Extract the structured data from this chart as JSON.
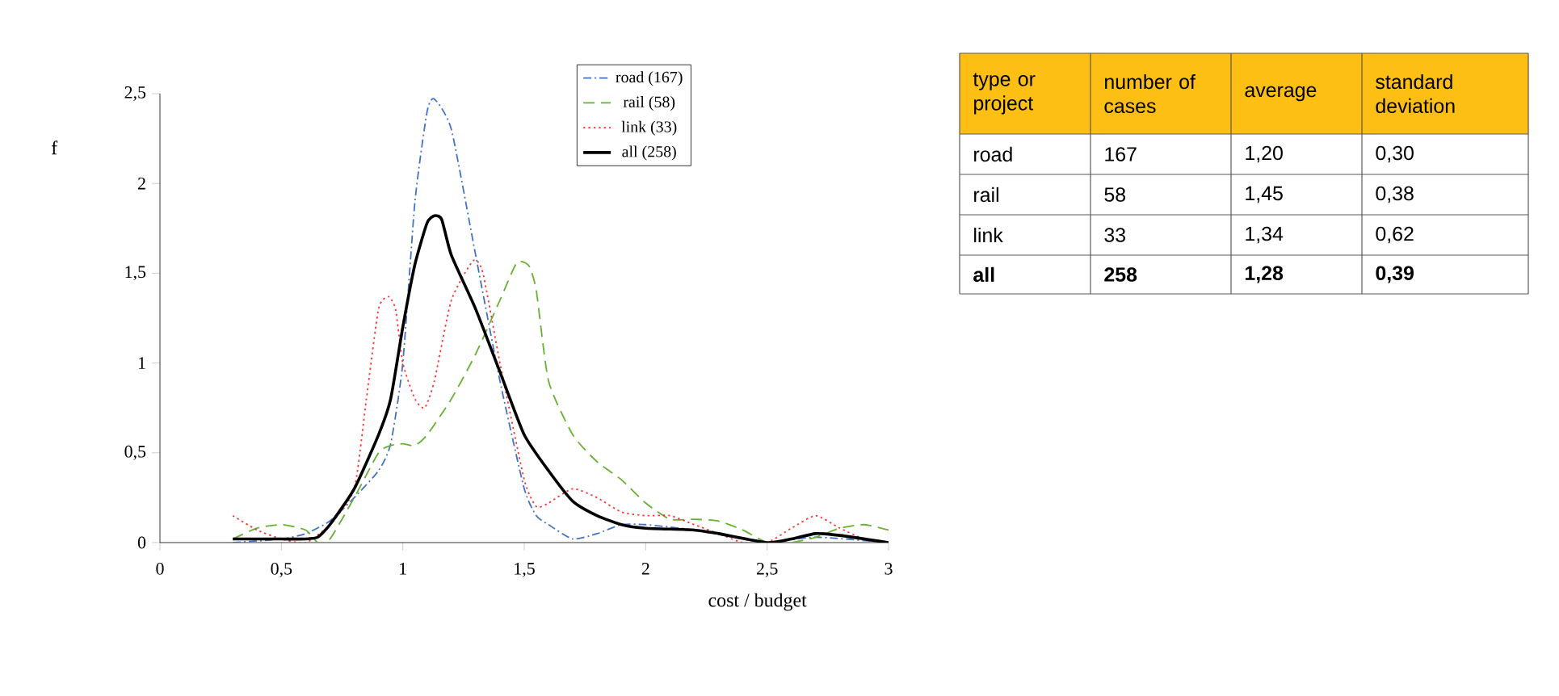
{
  "chart_data": [
    {
      "type": "line",
      "xlabel": "cost / budget",
      "ylabel": "f",
      "xlim": [
        0,
        3
      ],
      "ylim": [
        0,
        2.5
      ],
      "xticks": [
        0,
        {
          "value": 0.5,
          "label": "0,5"
        },
        1,
        {
          "value": 1.5,
          "label": "1,5"
        },
        2,
        {
          "value": 2.5,
          "label": "2,5"
        },
        3
      ],
      "yticks": [
        0,
        {
          "value": 0.5,
          "label": "0,5"
        },
        1,
        {
          "value": 1.5,
          "label": "1,5"
        },
        2,
        {
          "value": 2.5,
          "label": "2,5"
        }
      ],
      "legend": "top right",
      "grid": false,
      "series": [
        {
          "name": "road (167)",
          "color": "#4472c4",
          "line_style": "dashdot",
          "x": [
            0.3,
            0.5,
            0.6,
            0.7,
            0.8,
            0.9,
            0.95,
            1.0,
            1.05,
            1.1,
            1.13,
            1.2,
            1.3,
            1.4,
            1.5,
            1.55,
            1.6,
            1.7,
            1.8,
            1.9,
            2.0,
            2.2,
            2.4,
            2.5,
            2.7,
            3.0
          ],
          "values": [
            0,
            0.02,
            0.05,
            0.12,
            0.25,
            0.4,
            0.55,
            1.0,
            1.9,
            2.4,
            2.47,
            2.3,
            1.6,
            0.9,
            0.3,
            0.15,
            0.1,
            0.02,
            0.05,
            0.1,
            0.1,
            0.07,
            0.02,
            0,
            0.03,
            0
          ]
        },
        {
          "name": "rail (58)",
          "color": "#66b032",
          "line_style": "dashed",
          "x": [
            0.3,
            0.4,
            0.5,
            0.6,
            0.65,
            0.7,
            0.8,
            0.9,
            0.95,
            1.0,
            1.05,
            1.1,
            1.2,
            1.3,
            1.4,
            1.47,
            1.52,
            1.55,
            1.6,
            1.7,
            1.8,
            1.9,
            2.0,
            2.1,
            2.2,
            2.3,
            2.4,
            2.5,
            2.6,
            2.7,
            2.8,
            2.9,
            3.0
          ],
          "values": [
            0.02,
            0.08,
            0.1,
            0.07,
            0,
            0.02,
            0.25,
            0.5,
            0.54,
            0.55,
            0.54,
            0.6,
            0.8,
            1.05,
            1.35,
            1.56,
            1.54,
            1.4,
            0.9,
            0.6,
            0.45,
            0.35,
            0.22,
            0.13,
            0.13,
            0.12,
            0.07,
            0,
            0,
            0.03,
            0.08,
            0.1,
            0.07
          ]
        },
        {
          "name": "link (33)",
          "color": "#ff3333",
          "line_style": "dotted",
          "x": [
            0.3,
            0.4,
            0.5,
            0.6,
            0.7,
            0.8,
            0.85,
            0.9,
            0.94,
            0.97,
            1.0,
            1.05,
            1.09,
            1.13,
            1.2,
            1.29,
            1.33,
            1.4,
            1.5,
            1.55,
            1.6,
            1.7,
            1.8,
            1.9,
            2.0,
            2.1,
            2.2,
            2.3,
            2.4,
            2.5,
            2.6,
            2.7,
            2.8,
            2.9,
            3.0
          ],
          "values": [
            0.15,
            0.07,
            0.02,
            0,
            0.1,
            0.3,
            0.8,
            1.3,
            1.37,
            1.3,
            1.0,
            0.8,
            0.75,
            0.9,
            1.35,
            1.57,
            1.5,
            1.0,
            0.35,
            0.2,
            0.22,
            0.3,
            0.25,
            0.17,
            0.15,
            0.15,
            0.1,
            0.05,
            0,
            0,
            0.08,
            0.15,
            0.08,
            0.02,
            0
          ]
        },
        {
          "name": "all (258)",
          "color": "#000000",
          "line_style": "solid",
          "x": [
            0.3,
            0.5,
            0.6,
            0.65,
            0.7,
            0.8,
            0.9,
            0.95,
            1.0,
            1.05,
            1.1,
            1.13,
            1.16,
            1.2,
            1.3,
            1.4,
            1.5,
            1.6,
            1.7,
            1.8,
            1.9,
            2.0,
            2.2,
            2.3,
            2.5,
            2.6,
            2.7,
            2.8,
            3.0
          ],
          "values": [
            0.02,
            0.02,
            0.02,
            0.03,
            0.1,
            0.3,
            0.6,
            0.8,
            1.2,
            1.55,
            1.78,
            1.82,
            1.8,
            1.6,
            1.3,
            0.95,
            0.6,
            0.4,
            0.23,
            0.15,
            0.1,
            0.08,
            0.07,
            0.05,
            0,
            0.02,
            0.05,
            0.04,
            0
          ]
        }
      ]
    },
    {
      "type": "other",
      "annotations": [
        "type or project",
        "number of cases",
        "average",
        "standard deviation",
        "road",
        "167",
        "1,20",
        "0,30",
        "rail",
        "58",
        "1,45",
        "0,38",
        "link",
        "33",
        "1,34",
        "0,62",
        "all",
        "258",
        "1,28",
        "0,39"
      ]
    }
  ]
}
